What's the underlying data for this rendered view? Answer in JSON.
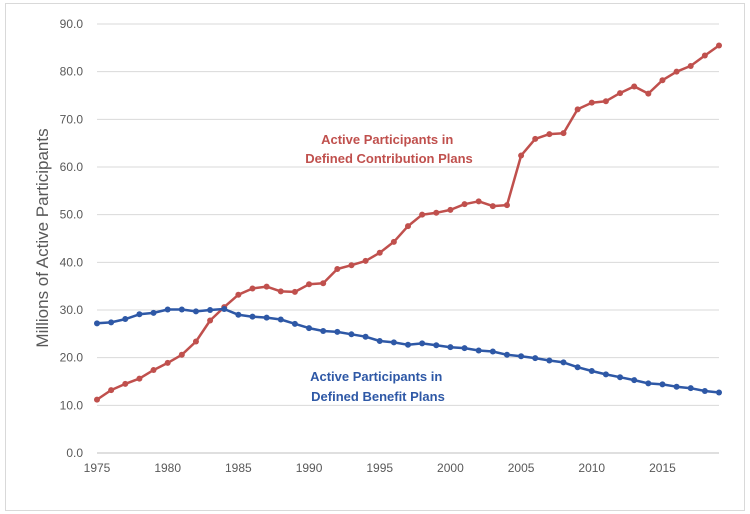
{
  "chart_data": {
    "type": "line",
    "title": "",
    "xlabel": "",
    "ylabel": "Millions of Active Participants",
    "xlim": [
      1975,
      2019
    ],
    "ylim": [
      0,
      90
    ],
    "x_ticks": [
      1975,
      1980,
      1985,
      1990,
      1995,
      2000,
      2005,
      2010,
      2015
    ],
    "y_ticks": [
      "0.0",
      "10.0",
      "20.0",
      "30.0",
      "40.0",
      "50.0",
      "60.0",
      "70.0",
      "80.0",
      "90.0"
    ],
    "grid": "horizontal",
    "x": [
      1975,
      1976,
      1977,
      1978,
      1979,
      1980,
      1981,
      1982,
      1983,
      1984,
      1985,
      1986,
      1987,
      1988,
      1989,
      1990,
      1991,
      1992,
      1993,
      1994,
      1995,
      1996,
      1997,
      1998,
      1999,
      2000,
      2001,
      2002,
      2003,
      2004,
      2005,
      2006,
      2007,
      2008,
      2009,
      2010,
      2011,
      2012,
      2013,
      2014,
      2015,
      2016,
      2017,
      2018,
      2019
    ],
    "series": [
      {
        "name": "Active Participants in Defined Contribution Plans",
        "color": "#c0504d",
        "label_lines": [
          "Active Participants in",
          "Defined Contribution Plans"
        ],
        "values": [
          11.2,
          13.2,
          14.5,
          15.6,
          17.4,
          18.9,
          20.6,
          23.4,
          27.8,
          30.6,
          33.2,
          34.5,
          34.9,
          33.9,
          33.8,
          35.4,
          35.6,
          38.6,
          39.4,
          40.3,
          42.0,
          44.3,
          47.6,
          50.0,
          50.4,
          51.0,
          52.2,
          52.8,
          51.8,
          52.0,
          62.4,
          65.9,
          66.9,
          67.1,
          72.1,
          73.5,
          73.8,
          75.5,
          76.9,
          75.4,
          78.2,
          80.0,
          81.2,
          83.4,
          85.5
        ]
      },
      {
        "name": "Active Participants in Defined Benefit Plans",
        "color": "#2e58a6",
        "label_lines": [
          "Active Participants in",
          "Defined Benefit Plans"
        ],
        "values": [
          27.2,
          27.4,
          28.1,
          29.1,
          29.4,
          30.1,
          30.1,
          29.7,
          30.0,
          30.2,
          29.0,
          28.6,
          28.4,
          28.0,
          27.1,
          26.2,
          25.6,
          25.4,
          24.9,
          24.4,
          23.5,
          23.2,
          22.7,
          23.0,
          22.6,
          22.2,
          22.0,
          21.5,
          21.3,
          20.6,
          20.3,
          19.9,
          19.4,
          19.0,
          18.0,
          17.2,
          16.5,
          15.9,
          15.3,
          14.6,
          14.4,
          13.9,
          13.6,
          13.0,
          12.7
        ]
      }
    ]
  }
}
